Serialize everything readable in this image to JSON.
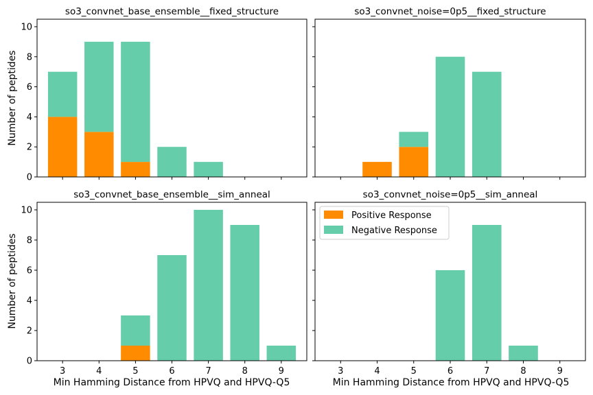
{
  "colors": {
    "positive": "#ff8c00",
    "negative": "#66cdaa",
    "axes": "#000000",
    "background": "#ffffff"
  },
  "shared": {
    "xlabel": "Min Hamming Distance from HPVQ and HPVQ-Q5",
    "ylabel": "Number of peptides",
    "legend": {
      "location": "upper-left of bottom-right panel",
      "entries": [
        {
          "label": "Positive Response",
          "color": "#ff8c00"
        },
        {
          "label": "Negative Response",
          "color": "#66cdaa"
        }
      ]
    }
  },
  "chart_data": [
    {
      "type": "bar",
      "stacked": true,
      "title": "so3_convnet_base_ensemble__fixed_structure",
      "categories": [
        3,
        4,
        5,
        6,
        7,
        8,
        9
      ],
      "xlim": [
        2.3,
        9.7
      ],
      "ylim": [
        0,
        10.5
      ],
      "yticks": [
        0,
        2,
        4,
        6,
        8,
        10
      ],
      "series": [
        {
          "name": "Positive Response",
          "values": [
            4,
            3,
            1,
            0,
            0,
            0,
            0
          ]
        },
        {
          "name": "Negative Response",
          "values": [
            3,
            6,
            8,
            2,
            1,
            0,
            0
          ]
        }
      ]
    },
    {
      "type": "bar",
      "stacked": true,
      "title": "so3_convnet_noise=0p5__fixed_structure",
      "categories": [
        3,
        4,
        5,
        6,
        7,
        8,
        9
      ],
      "xlim": [
        2.3,
        9.7
      ],
      "ylim": [
        0,
        10.5
      ],
      "yticks": [
        0,
        2,
        4,
        6,
        8,
        10
      ],
      "series": [
        {
          "name": "Positive Response",
          "values": [
            0,
            1,
            2,
            0,
            0,
            0,
            0
          ]
        },
        {
          "name": "Negative Response",
          "values": [
            0,
            0,
            1,
            8,
            7,
            0,
            0
          ]
        }
      ]
    },
    {
      "type": "bar",
      "stacked": true,
      "title": "so3_convnet_base_ensemble__sim_anneal",
      "categories": [
        3,
        4,
        5,
        6,
        7,
        8,
        9
      ],
      "xlim": [
        2.3,
        9.7
      ],
      "ylim": [
        0,
        10.5
      ],
      "yticks": [
        0,
        2,
        4,
        6,
        8,
        10
      ],
      "series": [
        {
          "name": "Positive Response",
          "values": [
            0,
            0,
            1,
            0,
            0,
            0,
            0
          ]
        },
        {
          "name": "Negative Response",
          "values": [
            0,
            0,
            2,
            7,
            10,
            9,
            1
          ]
        }
      ]
    },
    {
      "type": "bar",
      "stacked": true,
      "title": "so3_convnet_noise=0p5__sim_anneal",
      "categories": [
        3,
        4,
        5,
        6,
        7,
        8,
        9
      ],
      "xlim": [
        2.3,
        9.7
      ],
      "ylim": [
        0,
        10.5
      ],
      "yticks": [
        0,
        2,
        4,
        6,
        8,
        10
      ],
      "series": [
        {
          "name": "Positive Response",
          "values": [
            0,
            0,
            0,
            0,
            0,
            0,
            0
          ]
        },
        {
          "name": "Negative Response",
          "values": [
            0,
            0,
            0,
            6,
            9,
            1,
            0
          ]
        }
      ]
    }
  ]
}
